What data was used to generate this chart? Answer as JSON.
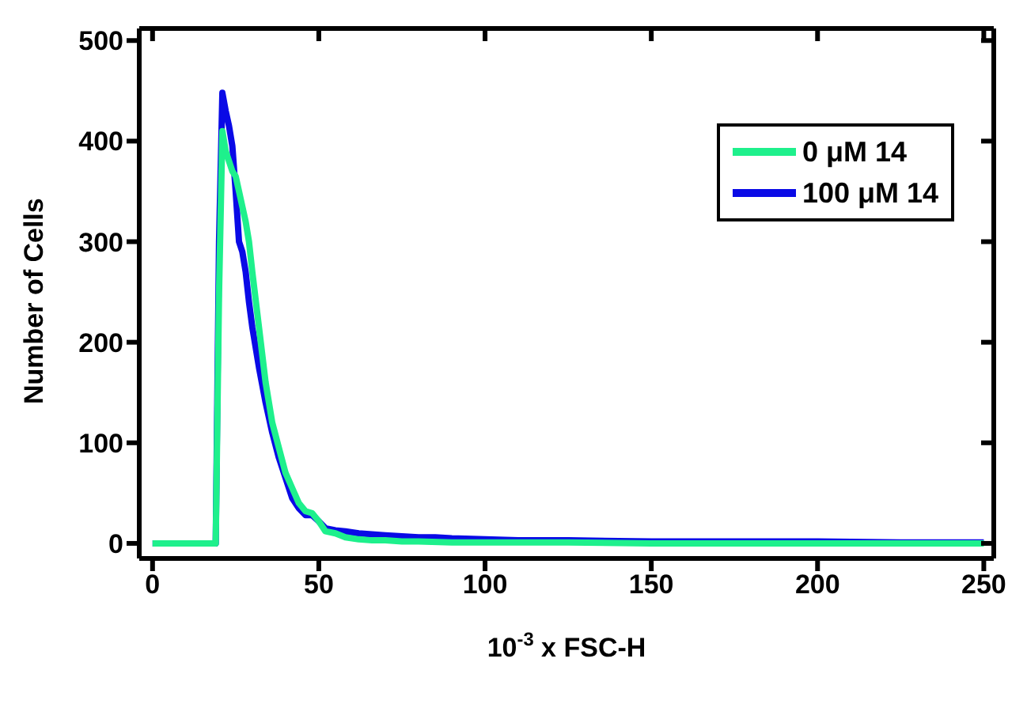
{
  "chart_data": {
    "type": "line",
    "xlabel": "10$^{-3}$ x FSC-H",
    "ylabel": "Number of Cells",
    "xlim": [
      -4,
      253
    ],
    "ylim": [
      -15,
      512
    ],
    "xticks": [
      0,
      50,
      100,
      150,
      200,
      250
    ],
    "yticks": [
      0,
      100,
      200,
      300,
      400,
      500
    ],
    "legend": "top right",
    "marker": "none",
    "line_style": "solid",
    "series": [
      {
        "name": "100 μM 14",
        "color": "#0a0ae6",
        "x": [
          0,
          19,
          20,
          21,
          22,
          23,
          24,
          25,
          26,
          27,
          28,
          29,
          30,
          32,
          34,
          36,
          38,
          40,
          42,
          44,
          46,
          48,
          50,
          52,
          55,
          58,
          62,
          66,
          70,
          75,
          80,
          85,
          90,
          100,
          110,
          125,
          150,
          175,
          200,
          225,
          250
        ],
        "values": [
          0,
          0,
          300,
          448,
          430,
          415,
          395,
          350,
          300,
          290,
          270,
          240,
          215,
          175,
          140,
          110,
          85,
          65,
          45,
          35,
          28,
          28,
          22,
          15,
          13,
          12,
          10,
          9,
          8,
          7,
          6,
          6,
          5,
          4,
          3,
          3,
          2,
          2,
          2,
          1,
          1
        ]
      },
      {
        "name": "0 μM 14",
        "color": "#1ef08c",
        "x": [
          0,
          19,
          20,
          21,
          22,
          23,
          24,
          25,
          26,
          27,
          28,
          29,
          30,
          32,
          34,
          36,
          38,
          40,
          42,
          44,
          46,
          48,
          50,
          52,
          55,
          58,
          62,
          66,
          70,
          75,
          80,
          90,
          100,
          125,
          150,
          175,
          200,
          225,
          250
        ],
        "values": [
          0,
          0,
          250,
          410,
          390,
          380,
          370,
          365,
          350,
          335,
          320,
          300,
          270,
          215,
          160,
          120,
          95,
          70,
          55,
          40,
          32,
          30,
          22,
          12,
          10,
          6,
          4,
          3,
          3,
          2,
          2,
          1,
          1,
          1,
          0,
          0,
          0,
          0,
          0
        ]
      }
    ]
  }
}
